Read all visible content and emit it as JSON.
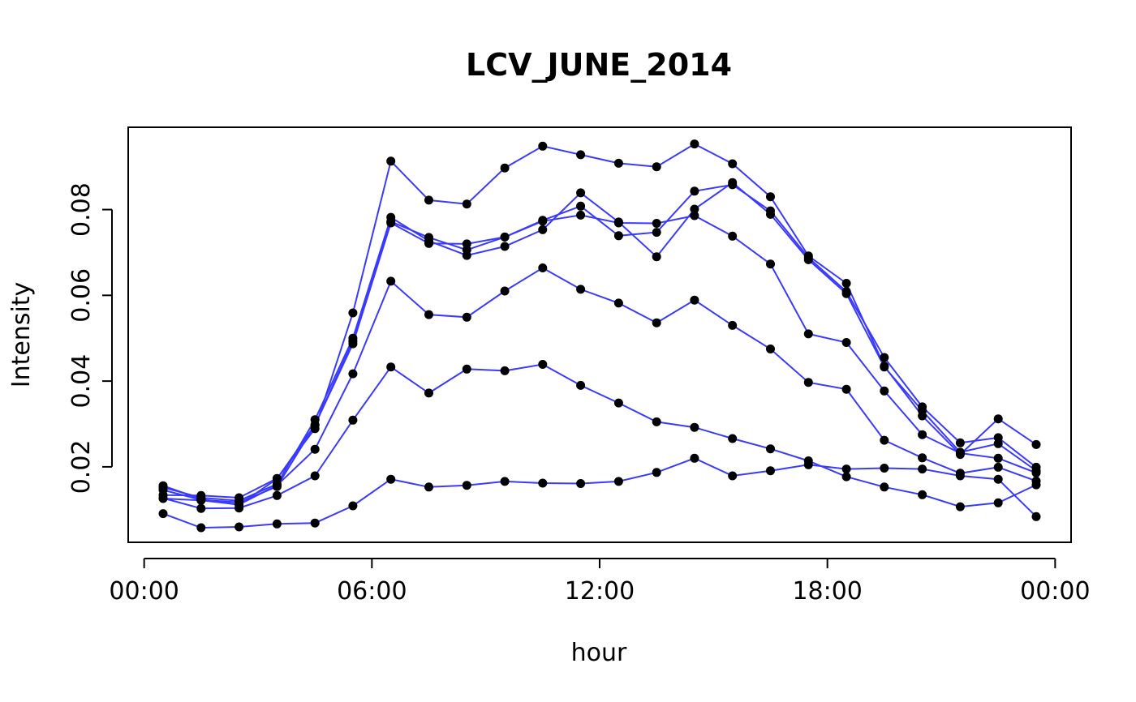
{
  "chart_data": {
    "type": "line",
    "title": "LCV_JUNE_2014",
    "xlabel": "hour",
    "ylabel": "Intensity",
    "x": [
      0.5,
      1.5,
      2.5,
      3.5,
      4.5,
      5.5,
      6.5,
      7.5,
      8.5,
      9.5,
      10.5,
      11.5,
      12.5,
      13.5,
      14.5,
      15.5,
      16.5,
      17.5,
      18.5,
      19.5,
      20.5,
      21.5,
      22.5,
      23.5
    ],
    "xlim": [
      0,
      24
    ],
    "xticks": [
      {
        "value": 0,
        "label": "00:00"
      },
      {
        "value": 6,
        "label": "06:00"
      },
      {
        "value": 12,
        "label": "12:00"
      },
      {
        "value": 18,
        "label": "18:00"
      },
      {
        "value": 24,
        "label": "00:00"
      }
    ],
    "ylim": [
      0.0024,
      0.0992
    ],
    "yticks": [
      {
        "value": 0.02,
        "label": "0.02"
      },
      {
        "value": 0.04,
        "label": "0.04"
      },
      {
        "value": 0.06,
        "label": "0.06"
      },
      {
        "value": 0.08,
        "label": "0.08"
      }
    ],
    "line_color": "#3a3aff",
    "point_color": "#000000",
    "grid": false,
    "legend": "none",
    "series": [
      {
        "values": [
          0.0134,
          0.0133,
          0.0128,
          0.0173,
          0.0289,
          0.0559,
          0.0913,
          0.0822,
          0.0813,
          0.0897,
          0.0948,
          0.0928,
          0.0908,
          0.09,
          0.0953,
          0.0907,
          0.083,
          0.0692,
          0.0628,
          0.0435,
          0.0319,
          0.0229,
          0.0312,
          0.0252
        ]
      },
      {
        "values": [
          0.0156,
          0.0125,
          0.0111,
          0.0172,
          0.0298,
          0.0493,
          0.0772,
          0.0735,
          0.0706,
          0.0736,
          0.0775,
          0.0808,
          0.0739,
          0.0747,
          0.0843,
          0.0858,
          0.0797,
          0.0688,
          0.0609,
          0.0455,
          0.034,
          0.0256,
          0.0268,
          0.0199
        ]
      },
      {
        "values": [
          0.0152,
          0.0128,
          0.0121,
          0.016,
          0.031,
          0.05,
          0.0782,
          0.0727,
          0.0693,
          0.0714,
          0.0753,
          0.0839,
          0.0771,
          0.069,
          0.0801,
          0.0863,
          0.0789,
          0.0683,
          0.0604,
          0.0433,
          0.0331,
          0.0234,
          0.0254,
          0.0191
        ]
      },
      {
        "values": [
          0.0146,
          0.0123,
          0.0117,
          0.0154,
          0.0298,
          0.0487,
          0.0769,
          0.0721,
          0.072,
          0.0736,
          0.0773,
          0.0787,
          0.0769,
          0.0768,
          0.0786,
          0.0738,
          0.0673,
          0.051,
          0.049,
          0.0377,
          0.0275,
          0.0232,
          0.022,
          0.0186
        ]
      },
      {
        "values": [
          0.0126,
          0.0122,
          0.0112,
          0.0157,
          0.0241,
          0.0417,
          0.0633,
          0.0555,
          0.0549,
          0.061,
          0.0664,
          0.0614,
          0.0582,
          0.0536,
          0.0589,
          0.053,
          0.0475,
          0.0397,
          0.0381,
          0.0262,
          0.0221,
          0.0185,
          0.0199,
          0.0167
        ]
      },
      {
        "values": [
          0.0127,
          0.0103,
          0.0104,
          0.0133,
          0.0179,
          0.0309,
          0.0433,
          0.0372,
          0.0428,
          0.0424,
          0.0439,
          0.039,
          0.0349,
          0.0305,
          0.0292,
          0.0266,
          0.0242,
          0.0214,
          0.0177,
          0.0153,
          0.0135,
          0.0107,
          0.0116,
          0.0158
        ]
      },
      {
        "values": [
          0.0091,
          0.0058,
          0.006,
          0.0067,
          0.0069,
          0.0109,
          0.0171,
          0.0153,
          0.0157,
          0.0166,
          0.0162,
          0.0161,
          0.0166,
          0.0187,
          0.022,
          0.0179,
          0.0191,
          0.0205,
          0.0195,
          0.0197,
          0.0195,
          0.0179,
          0.0171,
          0.0084
        ]
      }
    ]
  }
}
